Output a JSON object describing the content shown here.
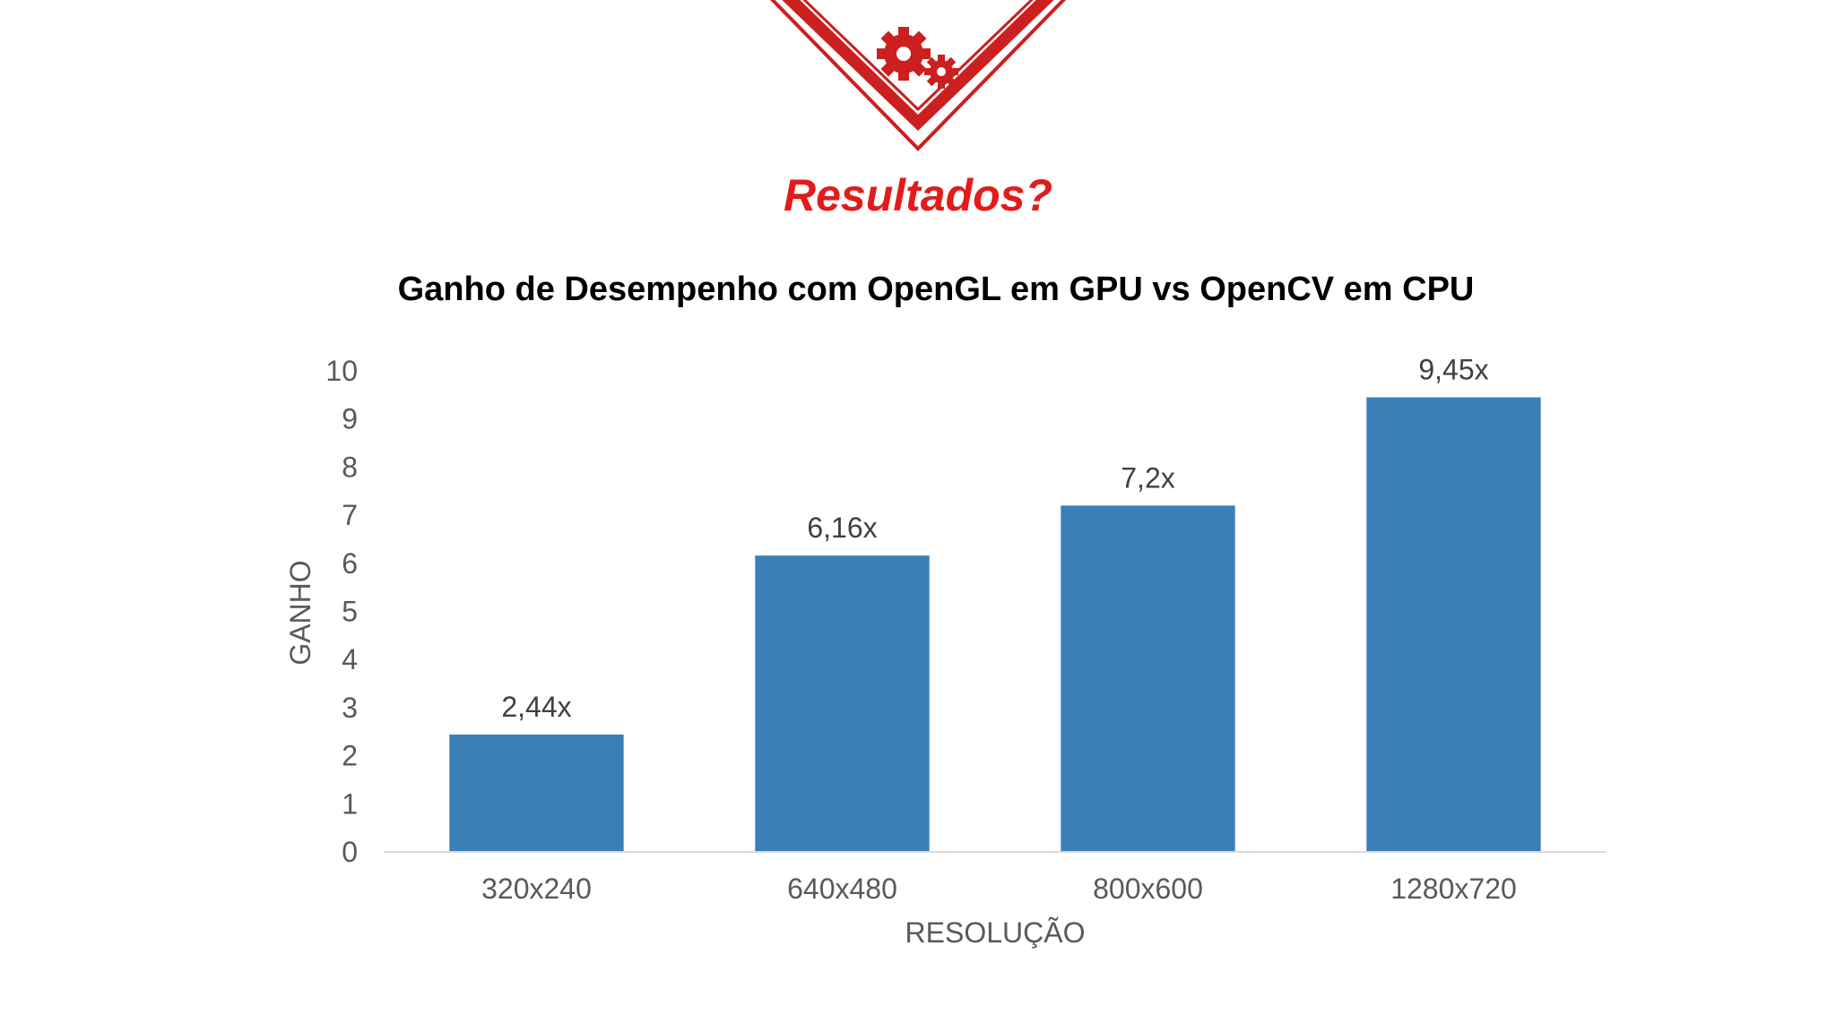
{
  "slide": {
    "heading": "Resultados?",
    "heading_color": "#e31b1b",
    "banner_icon": "gears-icon",
    "banner_color": "#cc1f1f"
  },
  "chart_data": {
    "type": "bar",
    "title": "Ganho de Desempenho com OpenGL em GPU vs OpenCV em CPU",
    "xlabel": "RESOLUÇÃO",
    "ylabel": "GANHO",
    "categories": [
      "320x240",
      "640x480",
      "800x600",
      "1280x720"
    ],
    "values": [
      2.44,
      6.16,
      7.2,
      9.45
    ],
    "data_labels": [
      "2,44x",
      "6,16x",
      "7,2x",
      "9,45x"
    ],
    "ylim": [
      0,
      10
    ],
    "yticks": [
      "0",
      "1",
      "2",
      "3",
      "4",
      "5",
      "6",
      "7",
      "8",
      "9",
      "10"
    ],
    "grid": false,
    "legend": "none",
    "bar_color": "#3a7fb8"
  }
}
